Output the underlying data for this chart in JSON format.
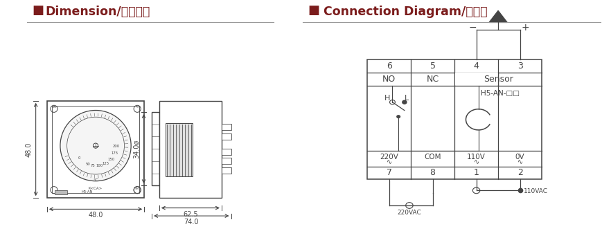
{
  "title_left": "Dimension/外型尺寸",
  "title_right": "Connection Diagram/接線圖",
  "title_color": "#7B1C1C",
  "bg_color": "#ffffff",
  "line_color": "#444444",
  "dim_48v": "48.0",
  "dim_48h": "48.0",
  "dim_34": "34.0ø",
  "dim_625": "62.5",
  "dim_74": "74.0",
  "model": "H5-AN",
  "h5_label": "H5-AN-□□",
  "conn_label_110vac": "110VAC",
  "conn_label_220vac": "220VAC",
  "pin_top": [
    "6",
    "5",
    "4",
    "3"
  ],
  "pin_bot": [
    "7",
    "8",
    "1",
    "2"
  ],
  "row_labels": [
    "NO",
    "NC",
    "Sensor"
  ],
  "volt_labels": [
    "220V",
    "COM",
    "110V",
    "0V"
  ]
}
